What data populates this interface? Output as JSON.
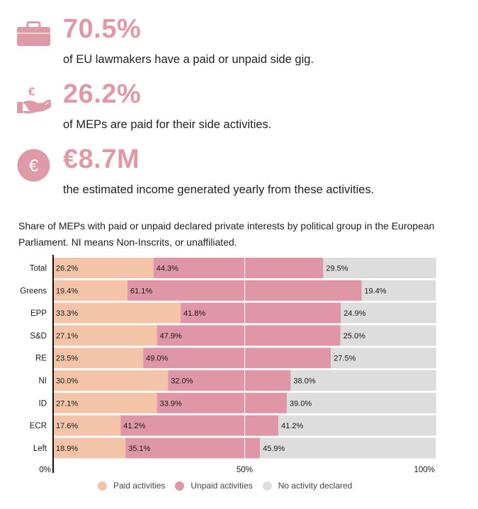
{
  "stats": [
    {
      "icon": "briefcase-icon",
      "value": "70.5%",
      "text": "of EU lawmakers have a paid or unpaid side gig."
    },
    {
      "icon": "hand-euro-icon",
      "value": "26.2%",
      "text": "of MEPs are paid for their side activities."
    },
    {
      "icon": "euro-circle-icon",
      "value": "€8.7M",
      "text": "the estimated income generated yearly from these activities."
    }
  ],
  "colors": {
    "paid": "#f4c4a9",
    "unpaid": "#df96a6",
    "none": "#dddddd",
    "accent": "#df9aa8"
  },
  "chart_data": {
    "type": "bar",
    "orientation": "horizontal",
    "stacked": true,
    "normalized": true,
    "title": "Share of MEPs with paid or unpaid declared private interests by political group in the European Parliament. NI means Non-Inscrits, or unaffiliated.",
    "categories": [
      "Total",
      "Greens",
      "EPP",
      "S&D",
      "RE",
      "NI",
      "ID",
      "ECR",
      "Left"
    ],
    "series": [
      {
        "name": "Paid activities",
        "color": "#f4c4a9",
        "values": [
          26.2,
          19.4,
          33.3,
          27.1,
          23.5,
          30.0,
          27.1,
          17.6,
          18.9
        ],
        "labels": [
          "26.2%",
          "19.4%",
          "33.3%",
          "27.1%",
          "23.5%",
          "30.0%",
          "27.1%",
          "17.6%",
          "18.9%"
        ]
      },
      {
        "name": "Unpaid activities",
        "color": "#df96a6",
        "values": [
          44.3,
          61.1,
          41.8,
          47.9,
          49.0,
          32.0,
          33.9,
          41.2,
          35.1
        ],
        "labels": [
          "44.3%",
          "61.1%",
          "41.8%",
          "47.9%",
          "49.0%",
          "32.0%",
          "33.9%",
          "41.2%",
          "35.1%"
        ]
      },
      {
        "name": "No activity declared",
        "color": "#dddddd",
        "values": [
          29.5,
          19.4,
          24.9,
          25.0,
          27.5,
          38.0,
          39.0,
          41.2,
          45.9
        ],
        "labels": [
          "29.5%",
          "19.4%",
          "24.9%",
          "25.0%",
          "27.5%",
          "38.0%",
          "39.0%",
          "41.2%",
          "45.9%"
        ]
      }
    ],
    "x_ticks": [
      "0%",
      "50%",
      "100%"
    ],
    "xlim": [
      0,
      100
    ],
    "legend_position": "bottom"
  }
}
